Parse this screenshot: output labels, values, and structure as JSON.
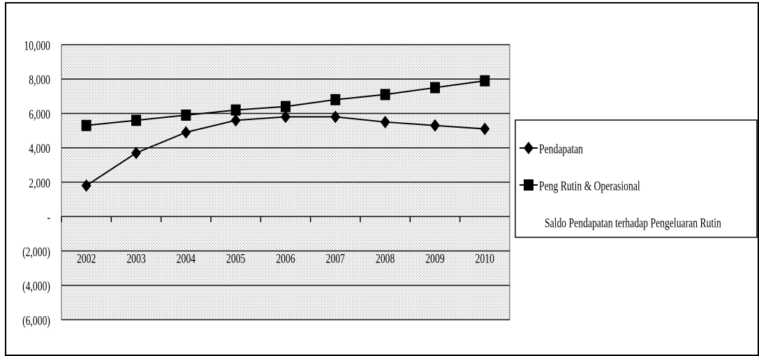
{
  "chart_data": {
    "type": "line",
    "categories": [
      "2002",
      "2003",
      "2004",
      "2005",
      "2006",
      "2007",
      "2008",
      "2009",
      "2010"
    ],
    "series": [
      {
        "name": "Pendapatan",
        "color": "#000000",
        "marker": "diamond",
        "values": [
          1800,
          3700,
          4900,
          5600,
          5800,
          5800,
          5500,
          5300,
          5100
        ]
      },
      {
        "name": "Peng Rutin & Operasional",
        "color": "#000000",
        "marker": "square",
        "values": [
          5300,
          5600,
          5900,
          6200,
          6400,
          6800,
          7100,
          7500,
          7900
        ]
      },
      {
        "name": "Saldo Pendapatan terhadap Pengeluaran Rutin",
        "color": null,
        "marker": null,
        "values": [
          null,
          null,
          null,
          null,
          null,
          null,
          null,
          null,
          null
        ]
      }
    ],
    "ylim": [
      -6000,
      10000
    ],
    "yticks": [
      {
        "value": -6000,
        "label": "(6,000)"
      },
      {
        "value": -4000,
        "label": "(4,000)"
      },
      {
        "value": -2000,
        "label": "(2,000)"
      },
      {
        "value": 0,
        "label": "-"
      },
      {
        "value": 2000,
        "label": "2,000"
      },
      {
        "value": 4000,
        "label": "4,000"
      },
      {
        "value": 6000,
        "label": "6,000"
      },
      {
        "value": 8000,
        "label": "8,000"
      },
      {
        "value": 10000,
        "label": "10,000"
      }
    ],
    "grid": true,
    "legend": "right"
  }
}
